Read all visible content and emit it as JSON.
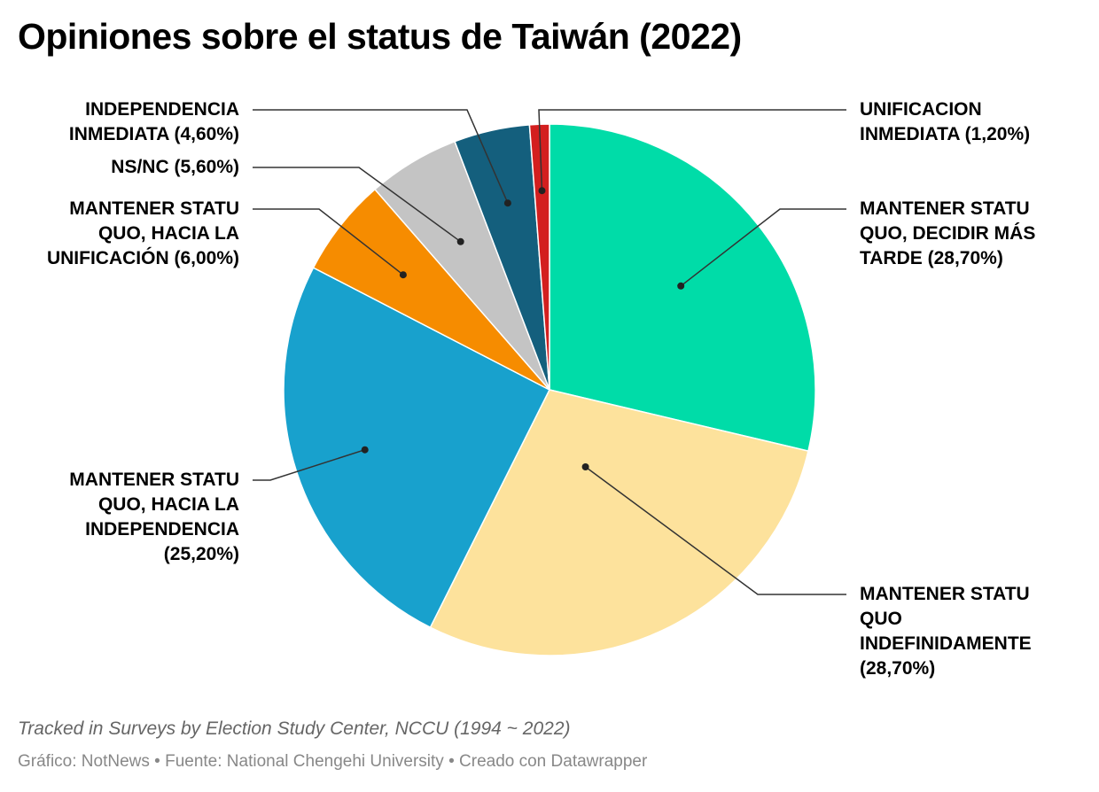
{
  "chart_data": {
    "type": "pie",
    "title": "Opiniones sobre el status de Taiwán (2022)",
    "subtitle": "Tracked in Surveys by Election Study Center, NCCU (1994 ~ 2022)",
    "credit": "Gráfico: NotNews • Fuente: National Chengehi University • Creado con Datawrapper",
    "slices": [
      {
        "label": "MANTENER STATU QUO, DECIDIR MÁS TARDE (28,70%)",
        "value": 28.7,
        "color": "#00DCA8"
      },
      {
        "label": "MANTENER STATU QUO INDEFINIDAMENTE (28,70%)",
        "value": 28.7,
        "color": "#FDE29C"
      },
      {
        "label": "MANTENER STATU QUO, HACIA LA INDEPENDENCIA (25,20%)",
        "value": 25.2,
        "color": "#18A1CD"
      },
      {
        "label": "MANTENER STATU QUO, HACIA LA UNIFICACIÓN (6,00%)",
        "value": 6.0,
        "color": "#F68C00"
      },
      {
        "label": "NS/NC (5,60%)",
        "value": 5.6,
        "color": "#C4C4C4"
      },
      {
        "label": "INDEPENDENCIA INMEDIATA (4,60%)",
        "value": 4.6,
        "color": "#145F7D"
      },
      {
        "label": "UNIFICACION INMEDIATA (1,20%)",
        "value": 1.2,
        "color": "#D31F1F"
      }
    ]
  }
}
